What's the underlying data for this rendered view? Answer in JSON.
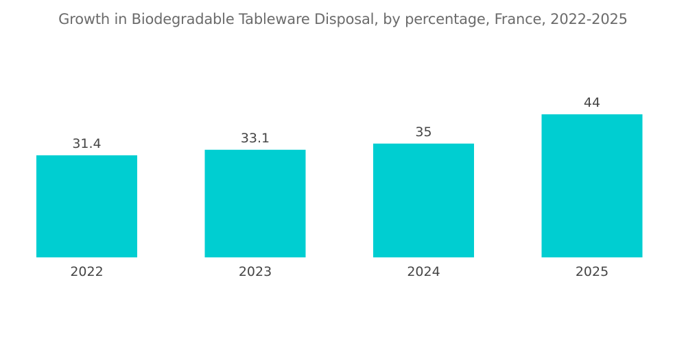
{
  "chart_data": {
    "type": "bar",
    "title": "Growth in Biodegradable Tableware Disposal, by percentage, France, 2022-2025",
    "categories": [
      "2022",
      "2023",
      "2024",
      "2025"
    ],
    "values": [
      31.4,
      33.1,
      35,
      44
    ],
    "value_labels": [
      "31.4",
      "33.1",
      "35",
      "44"
    ],
    "bar_color": "#00ced1",
    "xlabel": "",
    "ylabel": "",
    "ylim": [
      0,
      44
    ],
    "grid": false,
    "legend": "none"
  }
}
